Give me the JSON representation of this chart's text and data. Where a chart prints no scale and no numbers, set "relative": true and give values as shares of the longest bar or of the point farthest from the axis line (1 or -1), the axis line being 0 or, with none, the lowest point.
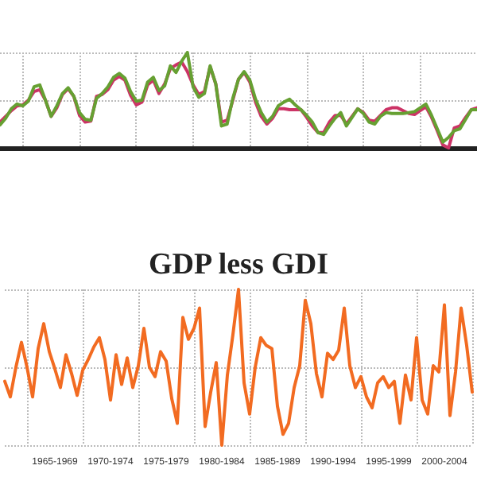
{
  "chart_data": [
    {
      "type": "line",
      "relative": true,
      "categories": [
        null,
        null,
        null,
        null,
        null,
        null,
        null,
        null,
        null,
        null,
        null,
        null,
        null,
        null,
        null,
        null,
        null,
        null,
        null,
        null,
        null,
        null,
        null,
        null,
        null,
        null,
        null,
        null,
        null,
        null,
        null,
        null,
        null,
        null,
        null,
        null,
        null,
        null,
        null,
        null,
        null,
        null,
        null,
        null,
        null,
        null,
        null,
        null,
        null,
        null,
        null,
        null,
        null,
        null,
        null,
        null,
        null,
        null,
        null,
        null,
        null,
        null,
        null,
        null,
        null,
        null,
        null,
        null,
        null,
        null,
        null,
        null,
        null,
        null,
        null,
        null,
        null,
        null,
        null,
        null,
        null,
        null,
        null,
        null,
        null
      ],
      "tick_labels": false,
      "grid": true,
      "marker": "none",
      "line_style": "solid",
      "series": [
        {
          "color": "#cc3366",
          "values": [
            0.27,
            0.33,
            0.39,
            0.44,
            0.45,
            0.5,
            0.59,
            0.61,
            0.5,
            0.33,
            0.42,
            0.56,
            0.62,
            0.54,
            0.34,
            0.27,
            0.28,
            0.54,
            0.56,
            0.61,
            0.71,
            0.75,
            0.71,
            0.55,
            0.45,
            0.48,
            0.66,
            0.71,
            0.57,
            0.67,
            0.83,
            0.87,
            0.9,
            0.8,
            0.66,
            0.56,
            0.59,
            0.85,
            0.67,
            0.27,
            0.29,
            0.5,
            0.72,
            0.79,
            0.69,
            0.48,
            0.33,
            0.25,
            0.31,
            0.41,
            0.41,
            0.4,
            0.4,
            0.4,
            0.32,
            0.23,
            0.16,
            0.16,
            0.27,
            0.34,
            0.34,
            0.25,
            0.33,
            0.41,
            0.37,
            0.29,
            0.28,
            0.34,
            0.4,
            0.42,
            0.42,
            0.39,
            0.36,
            0.35,
            0.39,
            0.43,
            0.32,
            0.18,
            0.03,
            0,
            0.21,
            0.23,
            0.32,
            0.4,
            0.42
          ]
        },
        {
          "color": "#66a032",
          "values": [
            0.24,
            0.31,
            0.41,
            0.46,
            0.44,
            0.49,
            0.64,
            0.66,
            0.5,
            0.33,
            0.44,
            0.57,
            0.63,
            0.54,
            0.37,
            0.3,
            0.29,
            0.52,
            0.57,
            0.64,
            0.74,
            0.78,
            0.73,
            0.59,
            0.49,
            0.5,
            0.69,
            0.74,
            0.6,
            0.65,
            0.86,
            0.79,
            0.91,
            1,
            0.64,
            0.53,
            0.57,
            0.86,
            0.67,
            0.23,
            0.25,
            0.52,
            0.72,
            0.8,
            0.71,
            0.51,
            0.37,
            0.27,
            0.33,
            0.44,
            0.48,
            0.51,
            0.45,
            0.4,
            0.34,
            0.27,
            0.16,
            0.14,
            0.23,
            0.31,
            0.37,
            0.23,
            0.32,
            0.41,
            0.36,
            0.27,
            0.25,
            0.33,
            0.37,
            0.36,
            0.36,
            0.36,
            0.37,
            0.38,
            0.42,
            0.46,
            0.34,
            0.2,
            0.06,
            0.11,
            0.18,
            0.2,
            0.3,
            0.4,
            0.4
          ]
        }
      ]
    },
    {
      "type": "line",
      "relative": true,
      "title": "GDP less GDI",
      "categories": [
        null,
        null,
        null,
        null,
        null,
        null,
        null,
        null,
        null,
        "1965-1969",
        null,
        null,
        null,
        null,
        null,
        null,
        null,
        null,
        null,
        "1970-1974",
        null,
        null,
        null,
        null,
        null,
        null,
        null,
        null,
        null,
        "1975-1979",
        null,
        null,
        null,
        null,
        null,
        null,
        null,
        null,
        null,
        "1980-1984",
        null,
        null,
        null,
        null,
        null,
        null,
        null,
        null,
        null,
        "1985-1989",
        null,
        null,
        null,
        null,
        null,
        null,
        null,
        null,
        null,
        "1990-1994",
        null,
        null,
        null,
        null,
        null,
        null,
        null,
        null,
        null,
        "1995-1999",
        null,
        null,
        null,
        null,
        null,
        null,
        null,
        null,
        null,
        "2000-2004",
        null,
        null,
        null,
        null,
        null
      ],
      "tick_labels": "x",
      "grid": true,
      "marker": "none",
      "line_style": "solid",
      "series": [
        {
          "color": "#f26b21",
          "values": [
            0.41,
            0.31,
            0.5,
            0.66,
            0.5,
            0.31,
            0.62,
            0.78,
            0.6,
            0.49,
            0.37,
            0.58,
            0.46,
            0.32,
            0.48,
            0.55,
            0.63,
            0.69,
            0.55,
            0.29,
            0.58,
            0.39,
            0.56,
            0.37,
            0.51,
            0.75,
            0.5,
            0.44,
            0.6,
            0.54,
            0.3,
            0.14,
            0.82,
            0.68,
            0.75,
            0.88,
            0.12,
            0.34,
            0.53,
            0,
            0.45,
            0.71,
            1,
            0.4,
            0.2,
            0.5,
            0.69,
            0.64,
            0.62,
            0.25,
            0.07,
            0.14,
            0.37,
            0.51,
            0.93,
            0.78,
            0.46,
            0.31,
            0.59,
            0.55,
            0.61,
            0.88,
            0.51,
            0.37,
            0.44,
            0.31,
            0.24,
            0.4,
            0.44,
            0.37,
            0.41,
            0.14,
            0.45,
            0.29,
            0.69,
            0.29,
            0.2,
            0.51,
            0.47,
            0.9,
            0.19,
            0.47,
            0.88,
            0.64,
            0.34
          ]
        }
      ]
    }
  ]
}
